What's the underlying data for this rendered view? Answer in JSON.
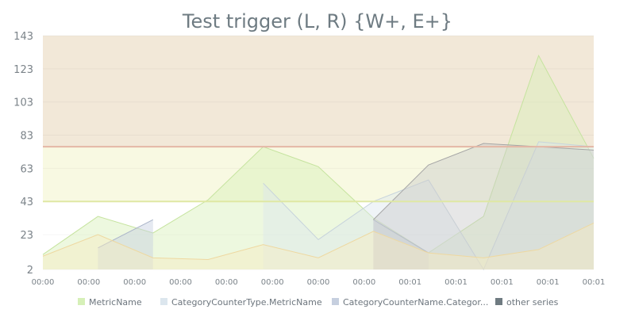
{
  "chart_data": {
    "type": "area",
    "title": "Test trigger (L, R) {W+, E+}",
    "y_ticks": [
      2,
      23,
      43,
      63,
      83,
      103,
      123,
      143
    ],
    "ylim": [
      2,
      143
    ],
    "x_tick_labels": [
      "00:00",
      "00:00",
      "00:00",
      "00:00",
      "00:00",
      "00:00",
      "00:00",
      "00:00",
      "00:01",
      "00:01",
      "00:01",
      "00:01",
      "00:01"
    ],
    "bands": [
      {
        "from": 2,
        "to": 43,
        "color": "#ffffff"
      },
      {
        "from": 43,
        "to": 76,
        "color": "#f8f9e2"
      },
      {
        "from": 76,
        "to": 143,
        "color": "#f2e8d8"
      }
    ],
    "threshold_lines": [
      {
        "value": 43,
        "color": "#dfe8a4"
      },
      {
        "value": 76,
        "color": "#e4b7a6"
      }
    ],
    "series": [
      {
        "name": "MetricName",
        "color": "#d6f0b8",
        "stroke": "#c5e39e",
        "points": [
          [
            0,
            11
          ],
          [
            1.2,
            34
          ],
          [
            2.4,
            24
          ],
          [
            3.6,
            44
          ],
          [
            4.8,
            76
          ],
          [
            6,
            64
          ],
          [
            7.2,
            33
          ],
          [
            8.4,
            12
          ],
          [
            9.6,
            34
          ],
          [
            10.8,
            131
          ],
          [
            12,
            69
          ]
        ]
      },
      {
        "name": "CategoryCounterType.MetricName",
        "color": "#dce6ee",
        "stroke": "#c7d3dc",
        "points": [
          [
            4.8,
            54
          ],
          [
            6,
            20
          ],
          [
            7.2,
            43
          ],
          [
            8.4,
            56
          ],
          [
            9.6,
            2
          ],
          [
            10.8,
            79
          ],
          [
            12,
            76
          ]
        ]
      },
      {
        "name": "CategoryCounterName.Categor...",
        "color": "#c6cfdf",
        "stroke": "#aab4c9",
        "points": [
          [
            1.2,
            15
          ],
          [
            2.4,
            32
          ]
        ]
      },
      {
        "name": "CategoryCounterName.Categor...",
        "color": "#c6cfdf",
        "stroke": "#aab4c9",
        "points": [
          [
            7.2,
            32
          ],
          [
            8.4,
            12
          ]
        ]
      },
      {
        "name": "other series",
        "color": "#c9c9c9",
        "stroke": "#a5a5a5",
        "points": [
          [
            7.2,
            32
          ],
          [
            8.4,
            65
          ],
          [
            9.6,
            78
          ],
          [
            12,
            74
          ]
        ]
      },
      {
        "name": "other series",
        "color": "#f6eac0",
        "stroke": "#eed8a0",
        "points": [
          [
            0,
            10
          ],
          [
            1.2,
            23
          ],
          [
            2.4,
            9
          ],
          [
            3.6,
            8
          ],
          [
            4.8,
            17
          ],
          [
            6,
            9
          ],
          [
            7.2,
            25
          ],
          [
            8.4,
            12
          ],
          [
            9.6,
            9
          ],
          [
            10.8,
            14
          ],
          [
            12,
            30
          ]
        ]
      }
    ],
    "legend": [
      {
        "label": "MetricName",
        "color": "#d6f0b8"
      },
      {
        "label": "CategoryCounterType.MetricName",
        "color": "#dce6ee"
      },
      {
        "label": "CategoryCounterName.Categor...",
        "color": "#c6cfdf"
      },
      {
        "label": "other series",
        "color": "#6f7b81"
      }
    ]
  }
}
